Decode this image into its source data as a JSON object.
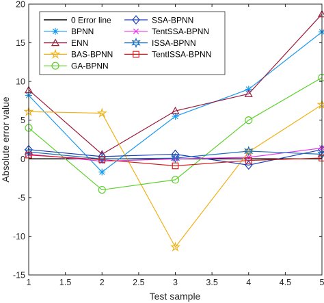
{
  "chart_data": {
    "type": "line",
    "xlabel": "Test sample",
    "ylabel": "Absolute error value",
    "xlim": [
      1,
      5
    ],
    "ylim": [
      -15,
      20
    ],
    "xticks": [
      "1",
      "1.5",
      "2",
      "2.5",
      "3",
      "3.5",
      "4",
      "4.5",
      "5"
    ],
    "yticks": [
      "-15",
      "-10",
      "-5",
      "0",
      "5",
      "10",
      "15",
      "20"
    ],
    "grid": false,
    "legend_position": "top-left",
    "x": [
      1,
      2,
      3,
      4,
      5
    ],
    "series": [
      {
        "name": "0 Error line",
        "color": "#000000",
        "marker": "none",
        "values": [
          0,
          0,
          0,
          0,
          0
        ]
      },
      {
        "name": "BPNN",
        "color": "#1a9af0",
        "marker": "asterisk",
        "values": [
          8.2,
          -1.7,
          5.5,
          9.0,
          16.4
        ]
      },
      {
        "name": "ENN",
        "color": "#9b1b3c",
        "marker": "triangle",
        "values": [
          8.9,
          0.6,
          6.2,
          8.4,
          18.7
        ]
      },
      {
        "name": "BAS-BPNN",
        "color": "#f0b21a",
        "marker": "star",
        "values": [
          6.1,
          5.9,
          -11.4,
          0.9,
          7.0
        ]
      },
      {
        "name": "GA-BPNN",
        "color": "#5bd02c",
        "marker": "circle",
        "values": [
          4.0,
          -4.0,
          -2.7,
          5.0,
          10.5
        ]
      },
      {
        "name": "SSA-BPNN",
        "color": "#1b3fb8",
        "marker": "diamond",
        "values": [
          1.2,
          0.3,
          0.6,
          -0.8,
          1.2
        ]
      },
      {
        "name": "TentSSA-BPNN",
        "color": "#e834e8",
        "marker": "x",
        "values": [
          0.6,
          -0.3,
          0.0,
          0.2,
          1.4
        ]
      },
      {
        "name": "ISSA-BPNN",
        "color": "#1a6fbf",
        "marker": "hexstar",
        "values": [
          0.9,
          0.0,
          0.1,
          1.0,
          0.6
        ]
      },
      {
        "name": "TentISSA-BPNN",
        "color": "#d41c1c",
        "marker": "square",
        "values": [
          0.5,
          -0.1,
          -0.9,
          -0.2,
          0.1
        ]
      }
    ]
  }
}
